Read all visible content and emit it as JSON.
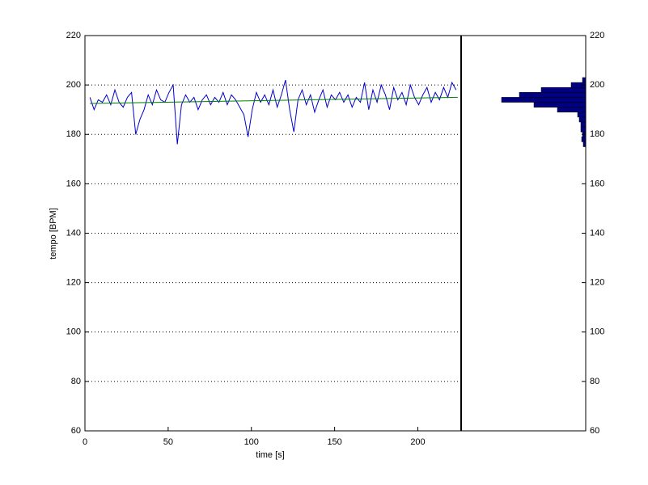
{
  "chart_data": [
    {
      "type": "line",
      "xlabel": "time [s]",
      "ylabel": "tempo [BPM]",
      "xlim": [
        0,
        226
      ],
      "xticks": [
        0,
        50,
        100,
        150,
        200
      ],
      "ylim": [
        60,
        220
      ],
      "yticks": [
        60,
        80,
        100,
        120,
        140,
        160,
        180,
        200,
        220
      ],
      "grid": true,
      "series": [
        {
          "color": "#0000cc",
          "x": [
            3,
            5.5,
            8,
            10.5,
            13,
            15.5,
            18,
            20.5,
            23,
            25.5,
            28,
            30.5,
            33,
            35.5,
            38,
            40.5,
            43,
            45.5,
            48,
            50.5,
            53,
            55.5,
            58,
            60.5,
            63,
            65.5,
            68,
            70.5,
            73,
            75.5,
            78,
            80.5,
            83,
            85.5,
            88,
            90.5,
            93,
            95.5,
            98,
            100.5,
            103,
            105.5,
            108,
            110.5,
            113,
            115.5,
            118,
            120.5,
            123,
            125.5,
            128,
            130.5,
            133,
            135.5,
            138,
            140.5,
            143,
            145.5,
            148,
            150.5,
            153,
            155.5,
            158,
            160.5,
            163,
            165.5,
            168,
            170.5,
            173,
            175.5,
            178,
            180.5,
            183,
            185.5,
            188,
            190.5,
            193,
            195.5,
            198,
            200.5,
            203,
            205.5,
            208,
            210.5,
            213,
            215.5,
            218,
            220.5,
            223
          ],
          "values": [
            195,
            190,
            194,
            193,
            196,
            192,
            198,
            193,
            191,
            195,
            197,
            180,
            186,
            190,
            196,
            192,
            198,
            194,
            193,
            197,
            200,
            176,
            192,
            196,
            193,
            195,
            190,
            194,
            196,
            192,
            195,
            193,
            197,
            192,
            196,
            194,
            191,
            188,
            179,
            190,
            197,
            193,
            196,
            192,
            198,
            191,
            196,
            202,
            190,
            181,
            194,
            198,
            192,
            196,
            189,
            194,
            198,
            191,
            196,
            194,
            197,
            193,
            196,
            191,
            195,
            193,
            201,
            190,
            198,
            193,
            200,
            196,
            190,
            199,
            194,
            197,
            192,
            200,
            195,
            192,
            196,
            199,
            193,
            197,
            194,
            199,
            195,
            201,
            198
          ]
        },
        {
          "color": "#008000",
          "x": [
            3,
            224
          ],
          "values": [
            192.5,
            195
          ]
        }
      ]
    },
    {
      "type": "histogram",
      "orientation": "horizontal",
      "color": "#000080",
      "bins": [
        175,
        177,
        179,
        181,
        183,
        185,
        187,
        189,
        191,
        193,
        195,
        197,
        199,
        201,
        203
      ],
      "counts": [
        3,
        5,
        4,
        6,
        6,
        8,
        10,
        35,
        64,
        104,
        82,
        55,
        18,
        4
      ],
      "xlim": [
        154,
        0
      ],
      "ylim": [
        60,
        220
      ],
      "yticks": [
        60,
        80,
        100,
        120,
        140,
        160,
        180,
        200,
        220
      ]
    }
  ]
}
